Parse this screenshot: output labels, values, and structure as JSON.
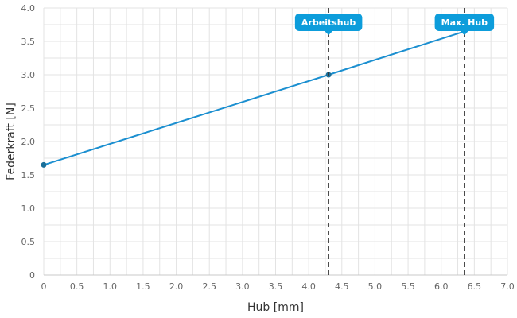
{
  "chart_data": {
    "type": "line",
    "xlabel": "Hub [mm]",
    "ylabel": "Federkraft [N]",
    "xlim": [
      0,
      7.0
    ],
    "ylim": [
      0,
      4.0
    ],
    "x_ticks": [
      "0",
      "0.5",
      "1.0",
      "1.5",
      "2.0",
      "2.5",
      "3.0",
      "3.5",
      "4.0",
      "4.5",
      "5.0",
      "5.5",
      "6.0",
      "6.5",
      "7.0"
    ],
    "y_ticks": [
      "0",
      "0.5",
      "1.0",
      "1.5",
      "2.0",
      "2.5",
      "3.0",
      "3.5",
      "4.0"
    ],
    "grid": true,
    "series": [
      {
        "color": "#1b8fd0",
        "points": [
          {
            "x": 0,
            "y": 1.65
          },
          {
            "x": 4.3,
            "y": 3.0
          },
          {
            "x": 6.35,
            "y": 3.65
          }
        ]
      }
    ],
    "markers": [
      {
        "label": "Arbeitshub",
        "x": 4.3
      },
      {
        "label": "Max. Hub",
        "x": 6.35
      }
    ],
    "colors": {
      "line": "#1b8fd0",
      "point": "#1a6f99",
      "callout": "#0d9ddb",
      "grid": "#e3e3e3",
      "marker_line": "#333333"
    }
  }
}
